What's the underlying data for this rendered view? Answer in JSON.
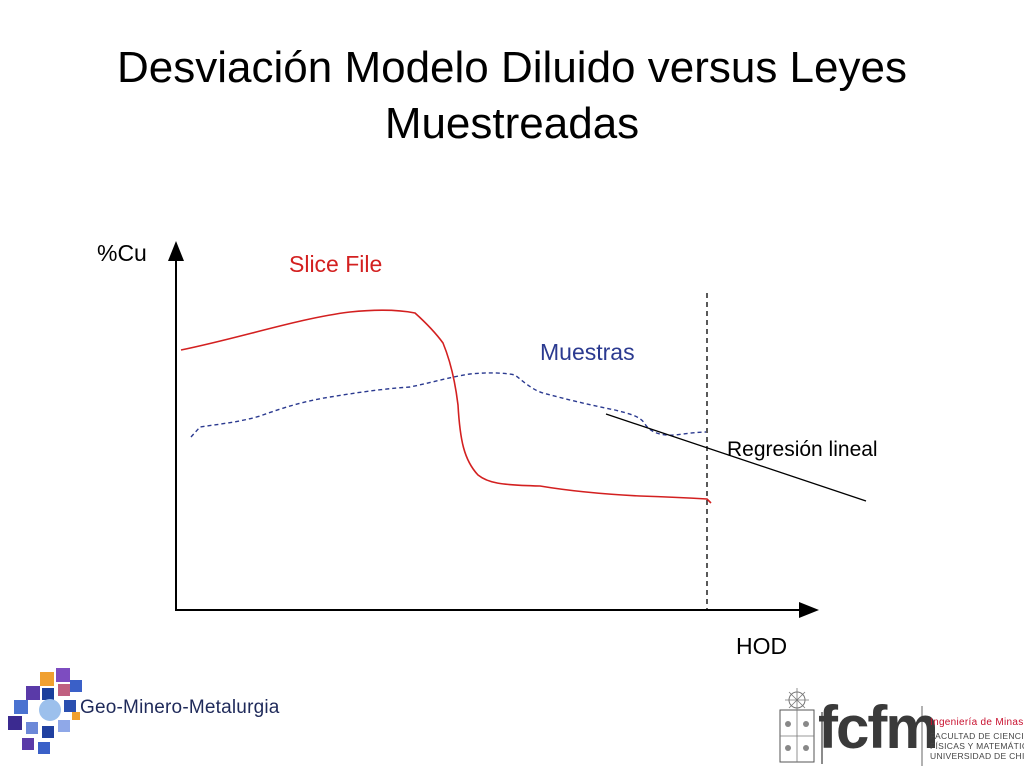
{
  "slide": {
    "title_line1": "Desviación Modelo Diluido versus Leyes",
    "title_line2": "Muestreadas"
  },
  "diagram": {
    "y_axis_label": "%Cu",
    "x_axis_label": "HOD",
    "series": [
      {
        "name": "Slice File",
        "color": "#d32020",
        "style": "solid"
      },
      {
        "name": "Muestras",
        "color": "#2b3a90",
        "style": "dashed"
      }
    ],
    "regression_label": "Regresión lineal",
    "regression_color": "#000000",
    "limit_line_style": "dashed"
  },
  "logos": {
    "left_text": "Geo-Minero-Metalurgia",
    "right_acronym": "fcfm",
    "right_lines": [
      "Ingeniería de Minas",
      "FACULTAD DE CIENCIAS",
      "FÍSICAS Y MATEMÁTICAS",
      "UNIVERSIDAD DE CHILE"
    ]
  }
}
